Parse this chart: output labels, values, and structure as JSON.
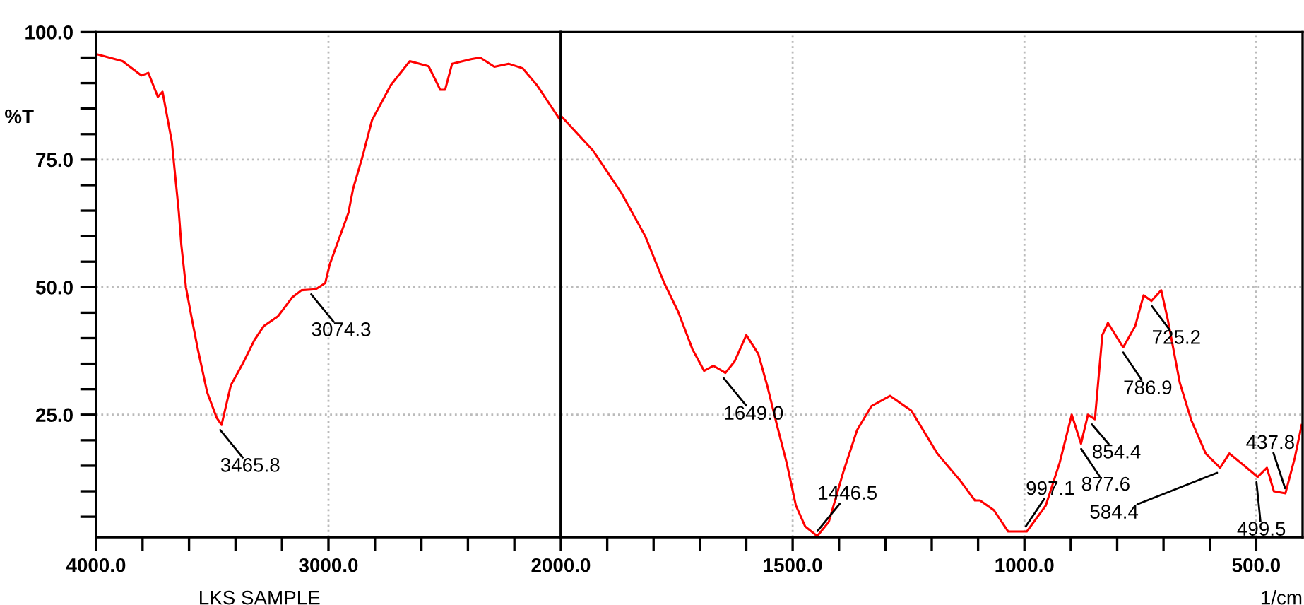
{
  "chart_data": [
    {
      "type": "line",
      "ylabel": "%T",
      "xlim": [
        4000,
        2000
      ],
      "ylim": [
        1,
        100
      ],
      "xticks": [
        {
          "value": 4000,
          "label": "4000.0"
        },
        {
          "value": 3800,
          "label": null
        },
        {
          "value": 3600,
          "label": null
        },
        {
          "value": 3400,
          "label": null
        },
        {
          "value": 3200,
          "label": null
        },
        {
          "value": 3000,
          "label": "3000.0"
        },
        {
          "value": 2800,
          "label": null
        },
        {
          "value": 2600,
          "label": null
        },
        {
          "value": 2400,
          "label": null
        },
        {
          "value": 2200,
          "label": null
        }
      ],
      "yticks": [
        {
          "value": 5,
          "label": null
        },
        {
          "value": 10,
          "label": null
        },
        {
          "value": 15,
          "label": null
        },
        {
          "value": 20,
          "label": null
        },
        {
          "value": 25,
          "label": "25.0"
        },
        {
          "value": 30,
          "label": null
        },
        {
          "value": 35,
          "label": null
        },
        {
          "value": 40,
          "label": null
        },
        {
          "value": 45,
          "label": null
        },
        {
          "value": 50,
          "label": "50.0"
        },
        {
          "value": 55,
          "label": null
        },
        {
          "value": 60,
          "label": null
        },
        {
          "value": 65,
          "label": null
        },
        {
          "value": 70,
          "label": null
        },
        {
          "value": 75,
          "label": "75.0"
        },
        {
          "value": 80,
          "label": null
        },
        {
          "value": 85,
          "label": null
        },
        {
          "value": 90,
          "label": null
        },
        {
          "value": 95,
          "label": null
        },
        {
          "value": 100,
          "label": "100.0"
        }
      ],
      "grid": true,
      "series": [
        {
          "color": "#ff0000",
          "x": [
            4000,
            3886,
            3805,
            3775,
            3734,
            3714,
            3674,
            3644,
            3633,
            3613,
            3590,
            3562,
            3522,
            3481,
            3460,
            3420,
            3369,
            3319,
            3278,
            3217,
            3156,
            3116,
            3055,
            3014,
            2995,
            2914,
            2894,
            2853,
            2813,
            2732,
            2650,
            2569,
            2519,
            2498,
            2468,
            2387,
            2347,
            2286,
            2225,
            2164,
            2103,
            2002
          ],
          "values": [
            95.7,
            94.3,
            91.5,
            92,
            87.3,
            88.3,
            78.5,
            64.7,
            58.2,
            49.9,
            44.3,
            37.8,
            29.4,
            24.4,
            23.0,
            30.8,
            35,
            39.6,
            42.4,
            44.3,
            48,
            49.4,
            49.6,
            50.8,
            54.4,
            64.6,
            69.3,
            75.7,
            82.7,
            89.6,
            94.3,
            93.3,
            88.7,
            88.7,
            93.8,
            94.7,
            95,
            93.2,
            93.8,
            92.9,
            89.6,
            82.7
          ]
        }
      ],
      "annotations": [
        {
          "text": "3465.8",
          "x": 3465.8,
          "y": 23.0
        },
        {
          "text": "3074.3",
          "x": 3074.3,
          "y": 49.6
        },
        "LKS SAMPLE"
      ]
    },
    {
      "type": "line",
      "xlabel": "1/cm",
      "xlim": [
        2000,
        400
      ],
      "ylim": [
        1,
        100
      ],
      "tick_labels": "x",
      "xticks": [
        {
          "value": 2000,
          "label": "2000.0"
        },
        {
          "value": 1900,
          "label": null
        },
        {
          "value": 1800,
          "label": null
        },
        {
          "value": 1700,
          "label": null
        },
        {
          "value": 1600,
          "label": null
        },
        {
          "value": 1500,
          "label": "1500.0"
        },
        {
          "value": 1400,
          "label": null
        },
        {
          "value": 1300,
          "label": null
        },
        {
          "value": 1200,
          "label": null
        },
        {
          "value": 1100,
          "label": null
        },
        {
          "value": 1000,
          "label": "1000.0"
        },
        {
          "value": 900,
          "label": null
        },
        {
          "value": 800,
          "label": null
        },
        {
          "value": 700,
          "label": null
        },
        {
          "value": 600,
          "label": null
        },
        {
          "value": 500,
          "label": "500.0"
        }
      ],
      "yticks": [
        25,
        50,
        75
      ],
      "grid": true,
      "series": [
        {
          "color": "#ff0000",
          "x": [
            2000,
            1930,
            1869,
            1818,
            1777,
            1747,
            1716,
            1691,
            1671,
            1645,
            1625,
            1600,
            1574,
            1554,
            1534,
            1513,
            1493,
            1473,
            1447,
            1422,
            1391,
            1361,
            1330,
            1290,
            1244,
            1188,
            1137,
            1107,
            1096,
            1066,
            1035,
            995,
            954,
            924,
            898,
            878,
            863,
            848,
            832,
            820,
            787,
            761,
            743,
            726,
            705,
            690,
            665,
            640,
            609,
            578,
            558,
            527,
            497,
            477,
            462,
            437,
            417,
            402
          ],
          "values": [
            83.6,
            76.7,
            68.4,
            60,
            50.8,
            45.2,
            37.8,
            33.6,
            34.6,
            33.2,
            35.5,
            40.6,
            36.9,
            30.4,
            23,
            15.6,
            7.2,
            3.1,
            1.2,
            4,
            13.7,
            22,
            26.7,
            28.7,
            25.8,
            17.4,
            11.9,
            8.2,
            8.2,
            6.3,
            2.1,
            2.1,
            7.2,
            15.6,
            25,
            19.3,
            25,
            24.1,
            40.6,
            43,
            38.2,
            42.4,
            48.4,
            47.3,
            49.4,
            43.3,
            31.3,
            23.9,
            17.4,
            14.6,
            17.4,
            15.1,
            12.8,
            14.6,
            10,
            9.6,
            16.5,
            23
          ]
        }
      ],
      "annotations": [
        {
          "text": "1649.0",
          "x": 1649.0,
          "y": 33.2
        },
        {
          "text": "1446.5",
          "x": 1446.5,
          "y": 1.2
        },
        {
          "text": "997.1",
          "x": 997.1,
          "y": 2.1
        },
        {
          "text": "877.6",
          "x": 877.6,
          "y": 19.3
        },
        {
          "text": "854.4",
          "x": 854.4,
          "y": 24.1
        },
        {
          "text": "786.9",
          "x": 786.9,
          "y": 38.2
        },
        {
          "text": "725.2",
          "x": 725.2,
          "y": 47.3
        },
        {
          "text": "584.4",
          "x": 584.4,
          "y": 14.6
        },
        {
          "text": "499.5",
          "x": 499.5,
          "y": 12.8
        },
        {
          "text": "437.8",
          "x": 437.8,
          "y": 9.6
        }
      ]
    }
  ]
}
